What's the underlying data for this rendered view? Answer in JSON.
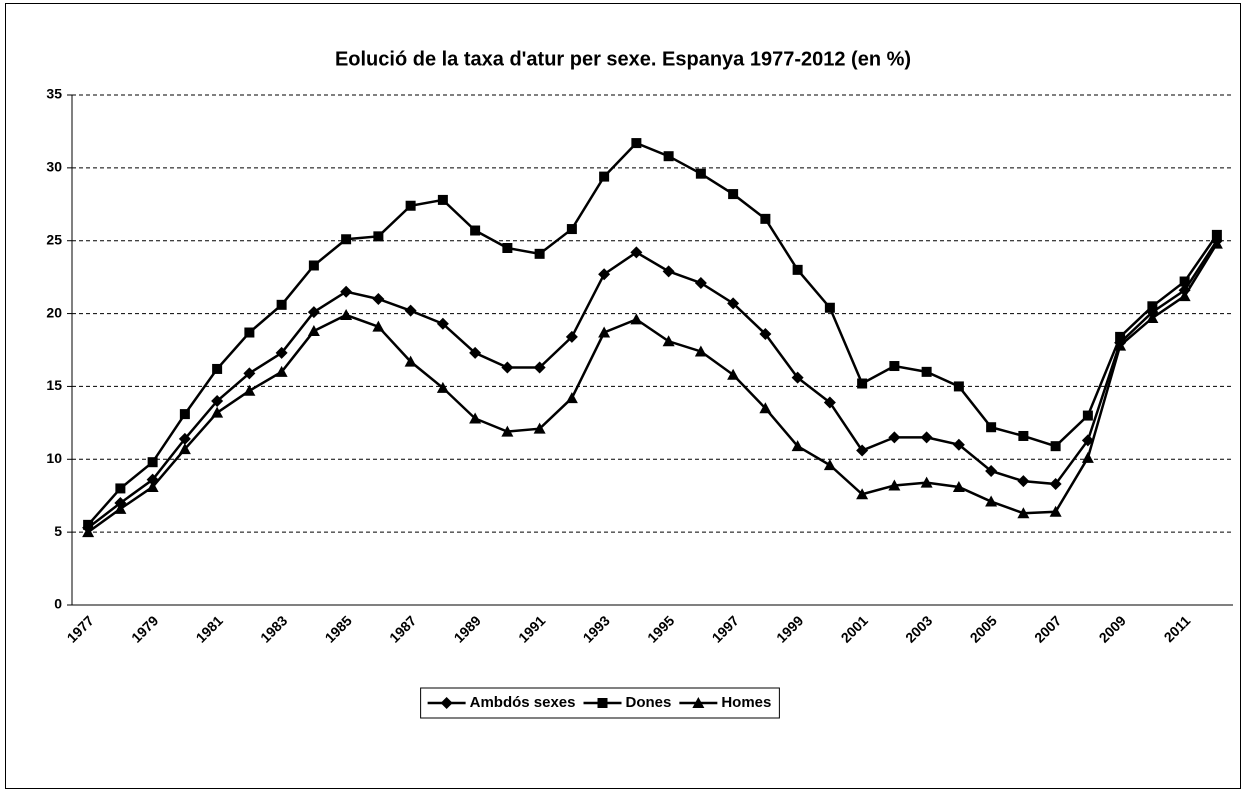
{
  "chart_data": {
    "type": "line",
    "title": "Eolució de la taxa d'atur per sexe. Espanya 1977-2012 (en %)",
    "categories": [
      "1977",
      null,
      "1979",
      null,
      "1981",
      null,
      "1983",
      null,
      "1985",
      null,
      "1987",
      null,
      "1989",
      null,
      "1991",
      null,
      "1993",
      null,
      "1995",
      null,
      "1997",
      null,
      "1999",
      null,
      "2001",
      null,
      "2003",
      null,
      "2005",
      null,
      "2007",
      null,
      "2009",
      null,
      "2011",
      null
    ],
    "series": [
      {
        "name": "Ambdós sexes",
        "color": "#000000",
        "marker": "diamond",
        "values": [
          5.3,
          7.0,
          8.6,
          11.4,
          14.0,
          15.9,
          17.3,
          20.1,
          21.5,
          21.0,
          20.2,
          19.3,
          17.3,
          16.3,
          16.3,
          18.4,
          22.7,
          24.2,
          22.9,
          22.1,
          20.7,
          18.6,
          15.6,
          13.9,
          10.6,
          11.5,
          11.5,
          11.0,
          9.2,
          8.5,
          8.3,
          11.3,
          18.0,
          20.1,
          21.6,
          25.0
        ]
      },
      {
        "name": "Dones",
        "color": "#000000",
        "marker": "square",
        "values": [
          5.5,
          8.0,
          9.8,
          13.1,
          16.2,
          18.7,
          20.6,
          23.3,
          25.1,
          25.3,
          27.4,
          27.8,
          25.7,
          24.5,
          24.1,
          25.8,
          29.4,
          31.7,
          30.8,
          29.6,
          28.2,
          26.5,
          23.0,
          20.4,
          15.2,
          16.4,
          16.0,
          15.0,
          12.2,
          11.6,
          10.9,
          13.0,
          18.4,
          20.5,
          22.2,
          25.4
        ]
      },
      {
        "name": "Homes",
        "color": "#000000",
        "marker": "triangle",
        "values": [
          5.0,
          6.6,
          8.1,
          10.7,
          13.2,
          14.7,
          16.0,
          18.8,
          19.9,
          19.1,
          16.7,
          14.9,
          12.8,
          11.9,
          12.1,
          14.2,
          18.7,
          19.6,
          18.1,
          17.4,
          15.8,
          13.5,
          10.9,
          9.6,
          7.6,
          8.2,
          8.4,
          8.1,
          7.1,
          6.3,
          6.4,
          10.1,
          17.8,
          19.7,
          21.2,
          24.8
        ]
      }
    ],
    "ylim": [
      0,
      35
    ],
    "yticks": [
      0,
      5,
      10,
      15,
      20,
      25,
      30,
      35
    ],
    "grid": true,
    "legend": "bottom"
  }
}
